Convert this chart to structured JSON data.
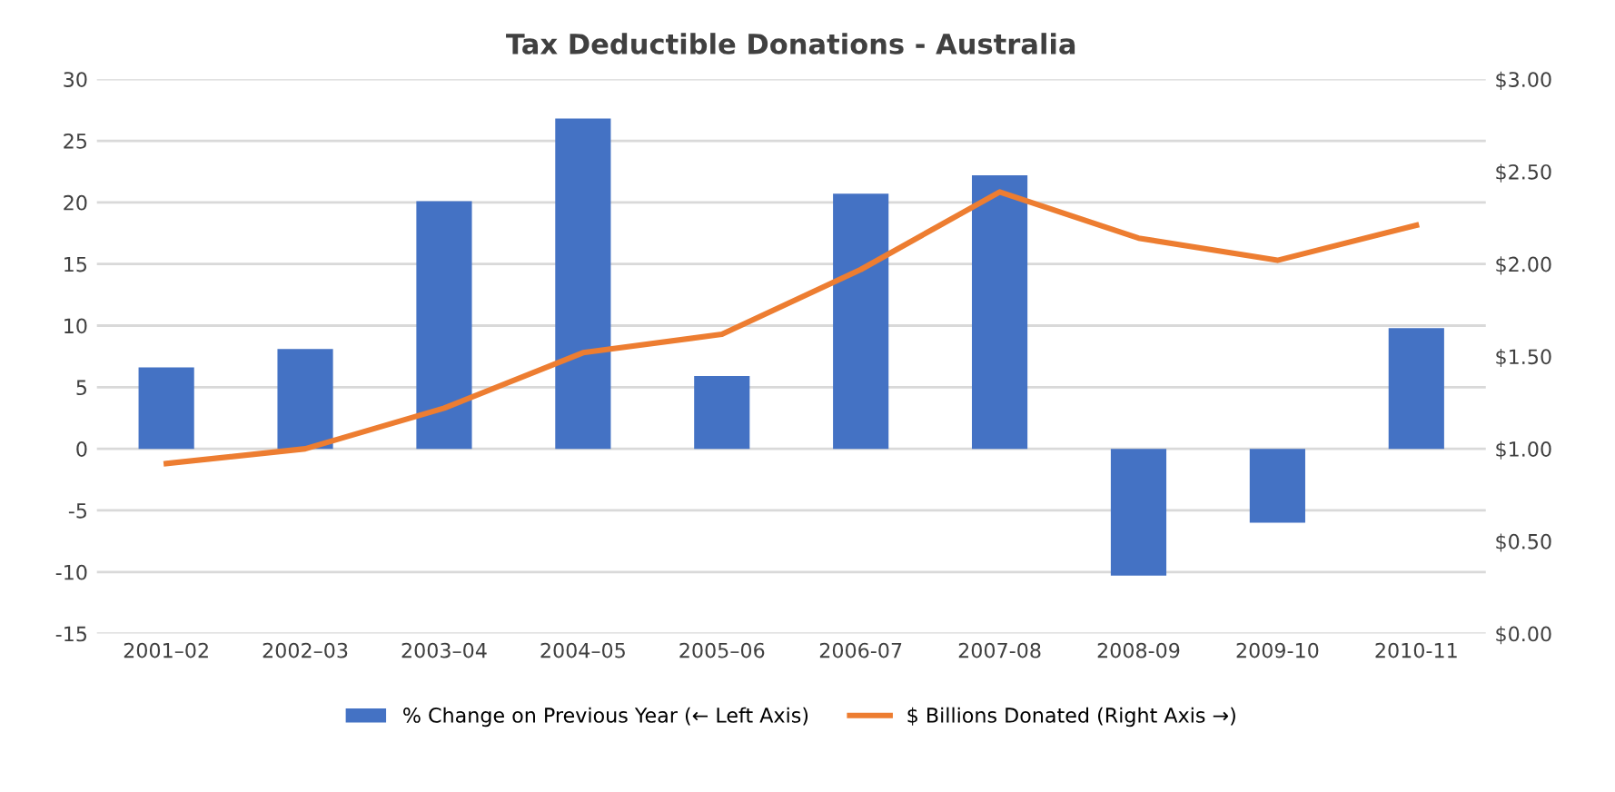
{
  "chart_data": {
    "type": "bar",
    "title": "Tax Deductible Donations - Australia",
    "categories": [
      "2001–02",
      "2002–03",
      "2003–04",
      "2004–05",
      "2005–06",
      "2006-07",
      "2007-08",
      "2008-09",
      "2009-10",
      "2010-11"
    ],
    "series": [
      {
        "name": "% Change on Previous Year (← Left Axis)",
        "color": "#4472c4",
        "values": [
          6.6,
          8.1,
          20.1,
          26.8,
          5.9,
          20.7,
          22.2,
          -10.3,
          -6.0,
          9.8
        ]
      },
      {
        "name": "$ Billions Donated (Right Axis →)",
        "type": "line",
        "axis": "y2",
        "color": "#ed7d31",
        "values": [
          0.92,
          1.0,
          1.22,
          1.52,
          1.62,
          1.97,
          2.39,
          2.14,
          2.02,
          2.21
        ]
      }
    ],
    "ylim": [
      -15,
      30
    ],
    "yticks": [
      -15,
      -10,
      -5,
      0,
      5,
      10,
      15,
      20,
      25,
      30
    ],
    "y2lim": [
      0,
      3
    ],
    "y2ticks": [
      {
        "value": 0,
        "label": "$0.00"
      },
      {
        "value": 0.5,
        "label": "$0.50"
      },
      {
        "value": 1,
        "label": "$1.00"
      },
      {
        "value": 1.5,
        "label": "$1.50"
      },
      {
        "value": 2,
        "label": "$2.00"
      },
      {
        "value": 2.5,
        "label": "$2.50"
      },
      {
        "value": 3,
        "label": "$3.00"
      }
    ],
    "grid": "y",
    "legend": "bottom",
    "marker": "none"
  }
}
